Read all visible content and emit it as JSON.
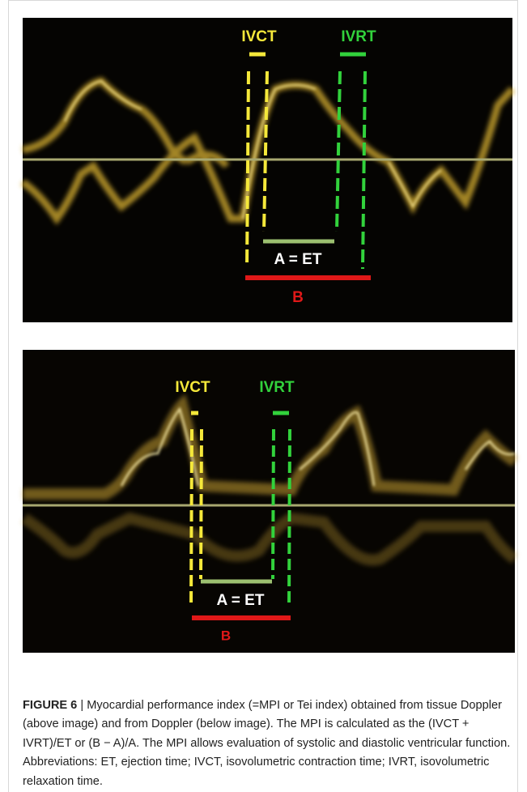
{
  "figure": {
    "panels": [
      {
        "ivct": "IVCT",
        "ivrt": "IVRT",
        "a": "A = ET",
        "b": "B"
      },
      {
        "ivct": "IVCT",
        "ivrt": "IVRT",
        "a": "A = ET",
        "b": "B"
      }
    ]
  },
  "caption": {
    "label": "FIGURE 6",
    "text": "| Myocardial performance index (=MPI or Tei index) obtained from tissue Doppler (above image) and from Doppler (below image). The MPI is calculated as the (IVCT + IVRT)/ET or (B − A)/A. The MPI allows evaluation of systolic and diastolic ventricular function. Abbreviations: ET, ejection time; IVCT, isovolumetric contraction time; IVRT, isovolumetric relaxation time."
  }
}
